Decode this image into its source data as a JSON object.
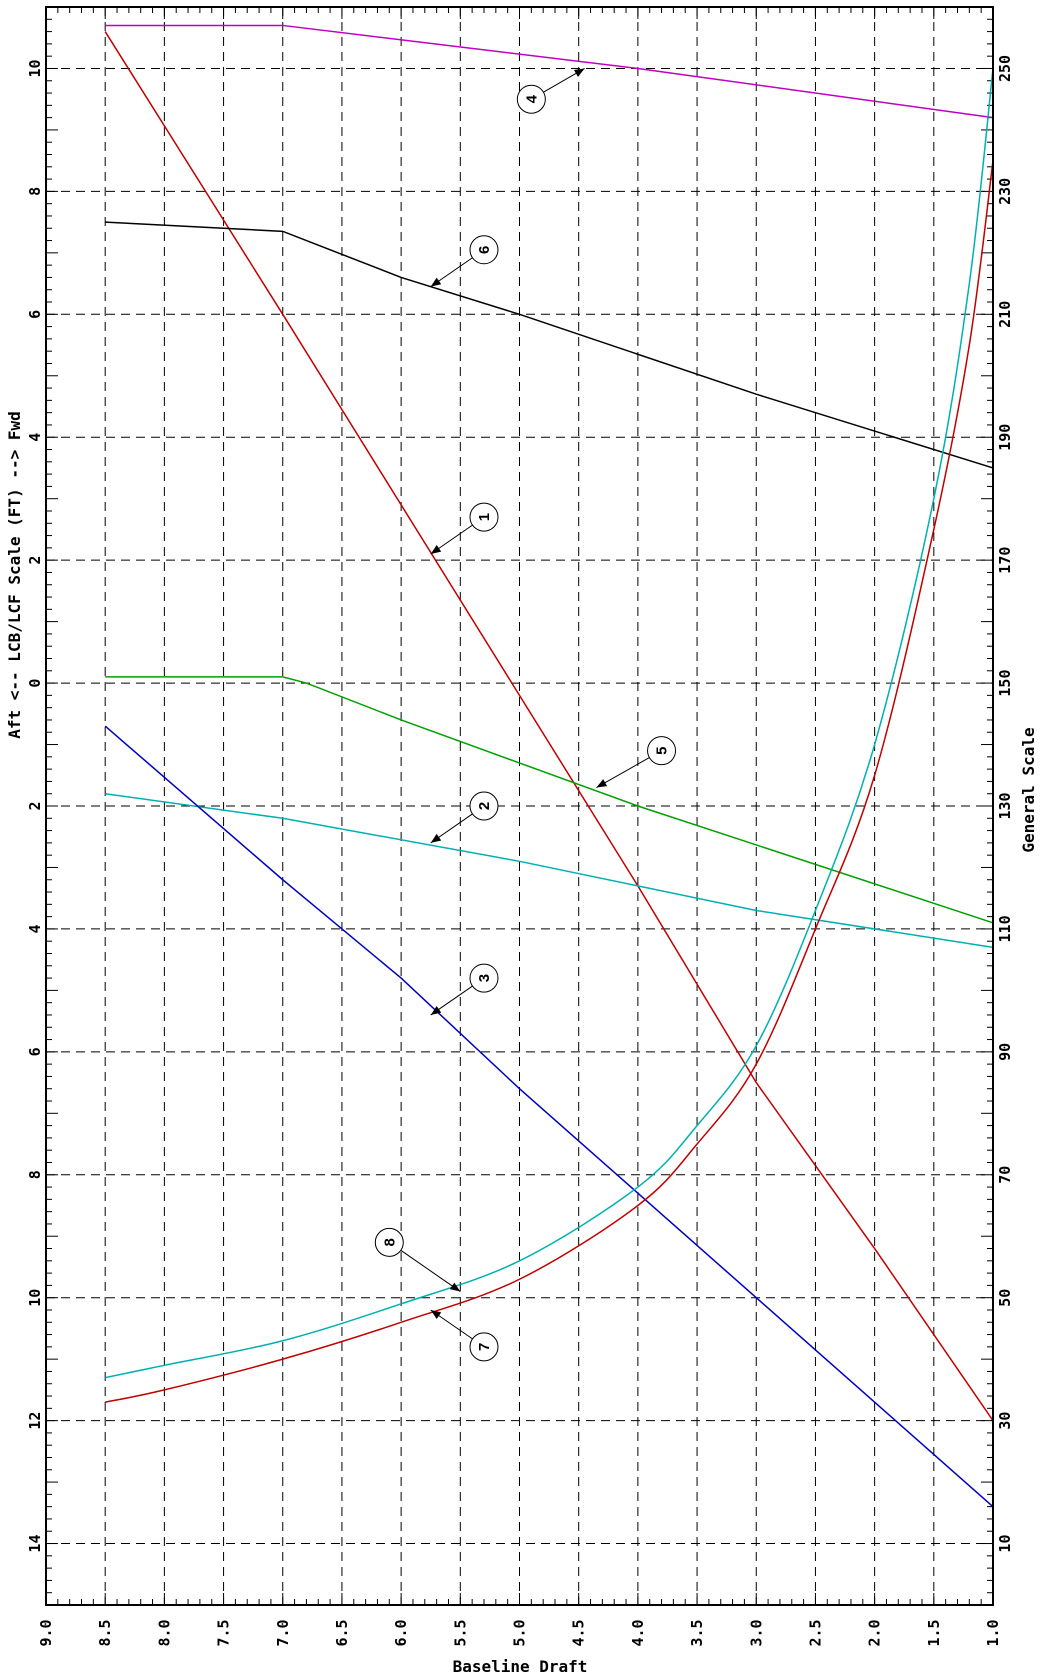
{
  "chart_data": {
    "type": "line",
    "title": "",
    "xlabel": "Baseline Draft",
    "left_axis_label": "Aft <-- LCB/LCF Scale (FT) --> Fwd",
    "right_axis_label": "General Scale",
    "draft_range": [
      1.0,
      9.0
    ],
    "draft_ticks": [
      "1.0",
      "1.5",
      "2.0",
      "2.5",
      "3.0",
      "3.5",
      "4.0",
      "4.5",
      "5.0",
      "5.5",
      "6.0",
      "6.5",
      "7.0",
      "7.5",
      "8.0",
      "8.5",
      "9.0"
    ],
    "lcb_range": [
      -15,
      11
    ],
    "lcb_ticks": [
      {
        "value": 10,
        "label": "10"
      },
      {
        "value": 8,
        "label": "8"
      },
      {
        "value": 6,
        "label": "6"
      },
      {
        "value": 4,
        "label": "4"
      },
      {
        "value": 2,
        "label": "2"
      },
      {
        "value": 0,
        "label": "0"
      },
      {
        "value": -2,
        "label": "2"
      },
      {
        "value": -4,
        "label": "4"
      },
      {
        "value": -6,
        "label": "6"
      },
      {
        "value": -8,
        "label": "8"
      },
      {
        "value": -10,
        "label": "10"
      },
      {
        "value": -12,
        "label": "12"
      },
      {
        "value": -14,
        "label": "14"
      }
    ],
    "general_range": [
      0,
      260
    ],
    "general_ticks": [
      "10",
      "30",
      "50",
      "70",
      "90",
      "110",
      "130",
      "150",
      "170",
      "190",
      "210",
      "230",
      "250"
    ],
    "grid": true,
    "series": [
      {
        "id": "1",
        "color": "#c00000",
        "scale": "lcb",
        "points": [
          [
            1.0,
            -12
          ],
          [
            2.0,
            -9.2
          ],
          [
            3.0,
            -6.5
          ],
          [
            4.0,
            -3.3
          ],
          [
            5.0,
            -0.2
          ],
          [
            6.0,
            2.9
          ],
          [
            7.0,
            6.0
          ],
          [
            8.5,
            10.6
          ]
        ]
      },
      {
        "id": "2",
        "color": "#00b0b0",
        "scale": "lcb",
        "points": [
          [
            1.0,
            -4.3
          ],
          [
            3.0,
            -3.7
          ],
          [
            5.0,
            -2.9
          ],
          [
            7.0,
            -2.2
          ],
          [
            8.5,
            -1.8
          ]
        ]
      },
      {
        "id": "3",
        "color": "#0000c0",
        "scale": "lcb",
        "points": [
          [
            1.0,
            -13.4
          ],
          [
            2.0,
            -11.7
          ],
          [
            3.0,
            -10.0
          ],
          [
            4.0,
            -8.3
          ],
          [
            5.0,
            -6.6
          ],
          [
            6.0,
            -4.8
          ],
          [
            7.0,
            -3.2
          ],
          [
            8.5,
            -0.7
          ]
        ]
      },
      {
        "id": "4",
        "color": "#c000c0",
        "scale": "lcb",
        "points": [
          [
            1.0,
            9.2
          ],
          [
            4.0,
            10.0
          ],
          [
            7.0,
            10.7
          ],
          [
            8.5,
            10.7
          ]
        ]
      },
      {
        "id": "5",
        "color": "#00a000",
        "scale": "lcb",
        "points": [
          [
            1.0,
            -3.9
          ],
          [
            4.0,
            -2.0
          ],
          [
            6.0,
            -0.6
          ],
          [
            6.8,
            0.0
          ],
          [
            7.0,
            0.1
          ],
          [
            8.5,
            0.1
          ]
        ]
      },
      {
        "id": "6",
        "color": "#000000",
        "scale": "lcb",
        "points": [
          [
            1.0,
            3.5
          ],
          [
            3.0,
            4.7
          ],
          [
            5.0,
            6.0
          ],
          [
            6.0,
            6.6
          ],
          [
            7.0,
            7.35
          ],
          [
            7.5,
            7.4
          ],
          [
            8.5,
            7.5
          ]
        ]
      },
      {
        "id": "7",
        "color": "#c00000",
        "scale": "general",
        "points": [
          [
            1.0,
            235
          ],
          [
            1.2,
            205
          ],
          [
            1.5,
            175
          ],
          [
            2.0,
            135
          ],
          [
            2.5,
            110
          ],
          [
            3.0,
            88
          ],
          [
            3.5,
            75
          ],
          [
            4.0,
            65
          ],
          [
            5.0,
            53
          ],
          [
            6.0,
            46
          ],
          [
            7.0,
            40
          ],
          [
            8.0,
            35
          ],
          [
            8.5,
            33
          ]
        ]
      },
      {
        "id": "8",
        "color": "#00b0b0",
        "scale": "general",
        "points": [
          [
            1.0,
            250
          ],
          [
            1.2,
            215
          ],
          [
            1.5,
            180
          ],
          [
            2.0,
            140
          ],
          [
            2.5,
            113
          ],
          [
            3.0,
            91
          ],
          [
            3.5,
            78
          ],
          [
            4.0,
            68
          ],
          [
            5.0,
            56
          ],
          [
            6.0,
            49
          ],
          [
            7.0,
            43
          ],
          [
            8.0,
            39
          ],
          [
            8.5,
            37
          ]
        ]
      }
    ],
    "callouts": [
      {
        "label": "1",
        "target": [
          5.75,
          2.1
        ],
        "circle": [
          5.3,
          2.7
        ]
      },
      {
        "label": "2",
        "target": [
          5.75,
          -2.6
        ],
        "circle": [
          5.3,
          -2.0
        ]
      },
      {
        "label": "3",
        "target": [
          5.75,
          -5.4
        ],
        "circle": [
          5.3,
          -4.8
        ]
      },
      {
        "label": "4",
        "target": [
          4.45,
          10.0
        ],
        "circle": [
          4.9,
          9.5
        ]
      },
      {
        "label": "5",
        "target": [
          4.35,
          -1.7
        ],
        "circle": [
          3.8,
          -1.1
        ]
      },
      {
        "label": "6",
        "target": [
          5.75,
          6.45
        ],
        "circle": [
          5.3,
          7.05
        ]
      },
      {
        "label": "7",
        "target": [
          5.75,
          -10.2
        ],
        "circle": [
          5.3,
          -10.8
        ]
      },
      {
        "label": "8",
        "target": [
          5.5,
          -9.9
        ],
        "circle": [
          6.1,
          -9.1
        ]
      }
    ]
  }
}
